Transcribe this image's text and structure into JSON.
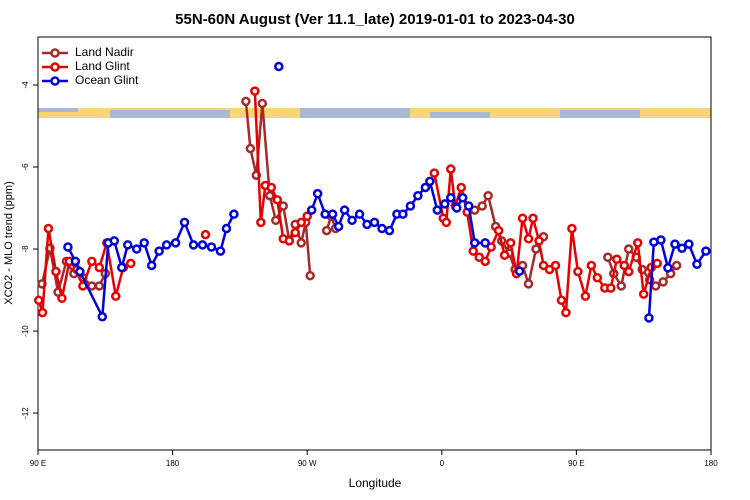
{
  "chart_data": {
    "type": "line",
    "title": "55N-60N August (Ver 11.1_late)   2019-01-01 to 2023-04-30",
    "xlabel": "Longitude",
    "ylabel": "XCO2 - MLO trend (ppm)",
    "xlim": [
      90,
      540
    ],
    "ylim": [
      -12.9,
      -2.83
    ],
    "xticks": [
      {
        "value": 90,
        "label": "90 E"
      },
      180,
      {
        "value": 270,
        "label": "90 W"
      },
      {
        "value": 360,
        "label": "0"
      },
      {
        "value": 450,
        "label": "90 E"
      },
      {
        "value": 540,
        "label": "180"
      }
    ],
    "yticks": [
      -4,
      -6,
      -8,
      -10,
      -12
    ],
    "legend": "upper left",
    "series": [
      {
        "name": "Land Nadir",
        "color": "#a52a2a",
        "x": [
          92.7,
          98,
          103.4,
          109,
          114,
          120,
          126,
          131,
          135,
          null,
          229,
          232,
          236,
          240,
          245,
          249,
          254,
          258,
          262,
          266,
          269,
          272,
          null,
          283,
          286,
          289,
          null,
          382,
          387,
          391,
          396,
          400,
          405,
          409,
          414,
          418,
          423,
          428,
          null,
          471,
          475,
          480,
          485,
          490,
          494,
          499,
          503,
          508,
          513,
          517
        ],
        "values": [
          -8.85,
          -7.98,
          -9.05,
          -8.3,
          -8.6,
          -8.7,
          -8.9,
          -8.9,
          -8.6,
          null,
          -4.4,
          -5.55,
          -6.2,
          -4.45,
          -6.7,
          -7.3,
          -6.95,
          -7.8,
          -7.4,
          -7.85,
          -7.35,
          -8.65,
          null,
          -7.55,
          -7.2,
          -7.5,
          null,
          -7.05,
          -6.95,
          -6.7,
          -7.45,
          -7.8,
          -8.1,
          -8.5,
          -8.4,
          -8.85,
          -8.0,
          -7.7,
          null,
          -8.2,
          -8.6,
          -8.9,
          -8.0,
          -8.2,
          -8.5,
          -8.75,
          -8.9,
          -8.8,
          -8.6,
          -8.4
        ]
      },
      {
        "name": "Land Glint",
        "color": "#e60000",
        "x": [
          90.5,
          93,
          97,
          102,
          106,
          111,
          116,
          120,
          126,
          131,
          136,
          142,
          147,
          152,
          null,
          202,
          null,
          235,
          239,
          242,
          246,
          250,
          254,
          258,
          262,
          266,
          270,
          null,
          355,
          361,
          363,
          366,
          369,
          373,
          377,
          381,
          385,
          389,
          393,
          398,
          402,
          406,
          410,
          414,
          418,
          421,
          425,
          428,
          432,
          436,
          440,
          443,
          447,
          451,
          456,
          460,
          464,
          469,
          473,
          477,
          482,
          485,
          491,
          495,
          500,
          504
        ],
        "values": [
          -9.25,
          -9.55,
          -7.5,
          -8.55,
          -9.2,
          -8.3,
          -8.5,
          -8.9,
          -8.3,
          -8.45,
          -7.85,
          -9.15,
          -8.45,
          -8.35,
          null,
          -7.65,
          null,
          -4.15,
          -7.35,
          -6.45,
          -6.5,
          -6.8,
          -7.75,
          -7.8,
          -7.6,
          -7.35,
          -7.2,
          null,
          -6.15,
          -7.25,
          -7.35,
          -6.05,
          -6.95,
          -6.5,
          -7.1,
          -8.05,
          -8.2,
          -8.3,
          -7.95,
          -7.55,
          -8.15,
          -7.85,
          -8.6,
          -7.25,
          -7.75,
          -7.25,
          -7.8,
          -8.4,
          -8.5,
          -8.4,
          -9.25,
          -9.55,
          -7.5,
          -8.55,
          -9.15,
          -8.4,
          -8.7,
          -8.95,
          -8.95,
          -8.25,
          -8.4,
          -8.55,
          -7.85,
          -9.1,
          -8.45,
          -8.35
        ]
      },
      {
        "name": "Ocean Glint",
        "color": "#0000dd",
        "x": [
          110,
          115,
          118,
          133,
          137,
          141,
          146,
          150,
          156,
          161,
          166,
          171,
          176,
          182,
          188,
          194,
          200,
          206,
          212,
          216,
          221,
          null,
          251,
          null,
          273,
          277,
          282,
          287,
          291,
          295,
          300,
          305,
          310,
          315,
          320,
          325,
          330,
          334,
          339,
          344,
          349,
          352,
          357,
          362,
          366,
          370,
          374,
          378,
          382,
          389,
          null,
          412,
          null,
          498.5,
          501.8,
          506.5,
          511.2,
          515.9,
          520.6,
          525.2,
          530.6,
          536.6
        ],
        "values": [
          -7.95,
          -8.3,
          -8.55,
          -9.65,
          -7.85,
          -7.8,
          -8.45,
          -7.9,
          -8.0,
          -7.85,
          -8.4,
          -8.05,
          -7.9,
          -7.85,
          -7.35,
          -7.9,
          -7.9,
          -7.95,
          -8.05,
          -7.5,
          -7.15,
          null,
          -3.55,
          null,
          -7.05,
          -6.65,
          -7.15,
          -7.15,
          -7.45,
          -7.05,
          -7.3,
          -7.15,
          -7.4,
          -7.35,
          -7.5,
          -7.55,
          -7.15,
          -7.15,
          -6.95,
          -6.7,
          -6.5,
          -6.35,
          -7.05,
          -6.9,
          -6.75,
          -7.0,
          -6.75,
          -6.95,
          -7.85,
          -7.85,
          null,
          -8.54,
          null,
          -9.68,
          -7.83,
          -7.78,
          -8.46,
          -7.88,
          -7.98,
          -7.88,
          -8.37,
          -8.05
        ]
      }
    ]
  }
}
